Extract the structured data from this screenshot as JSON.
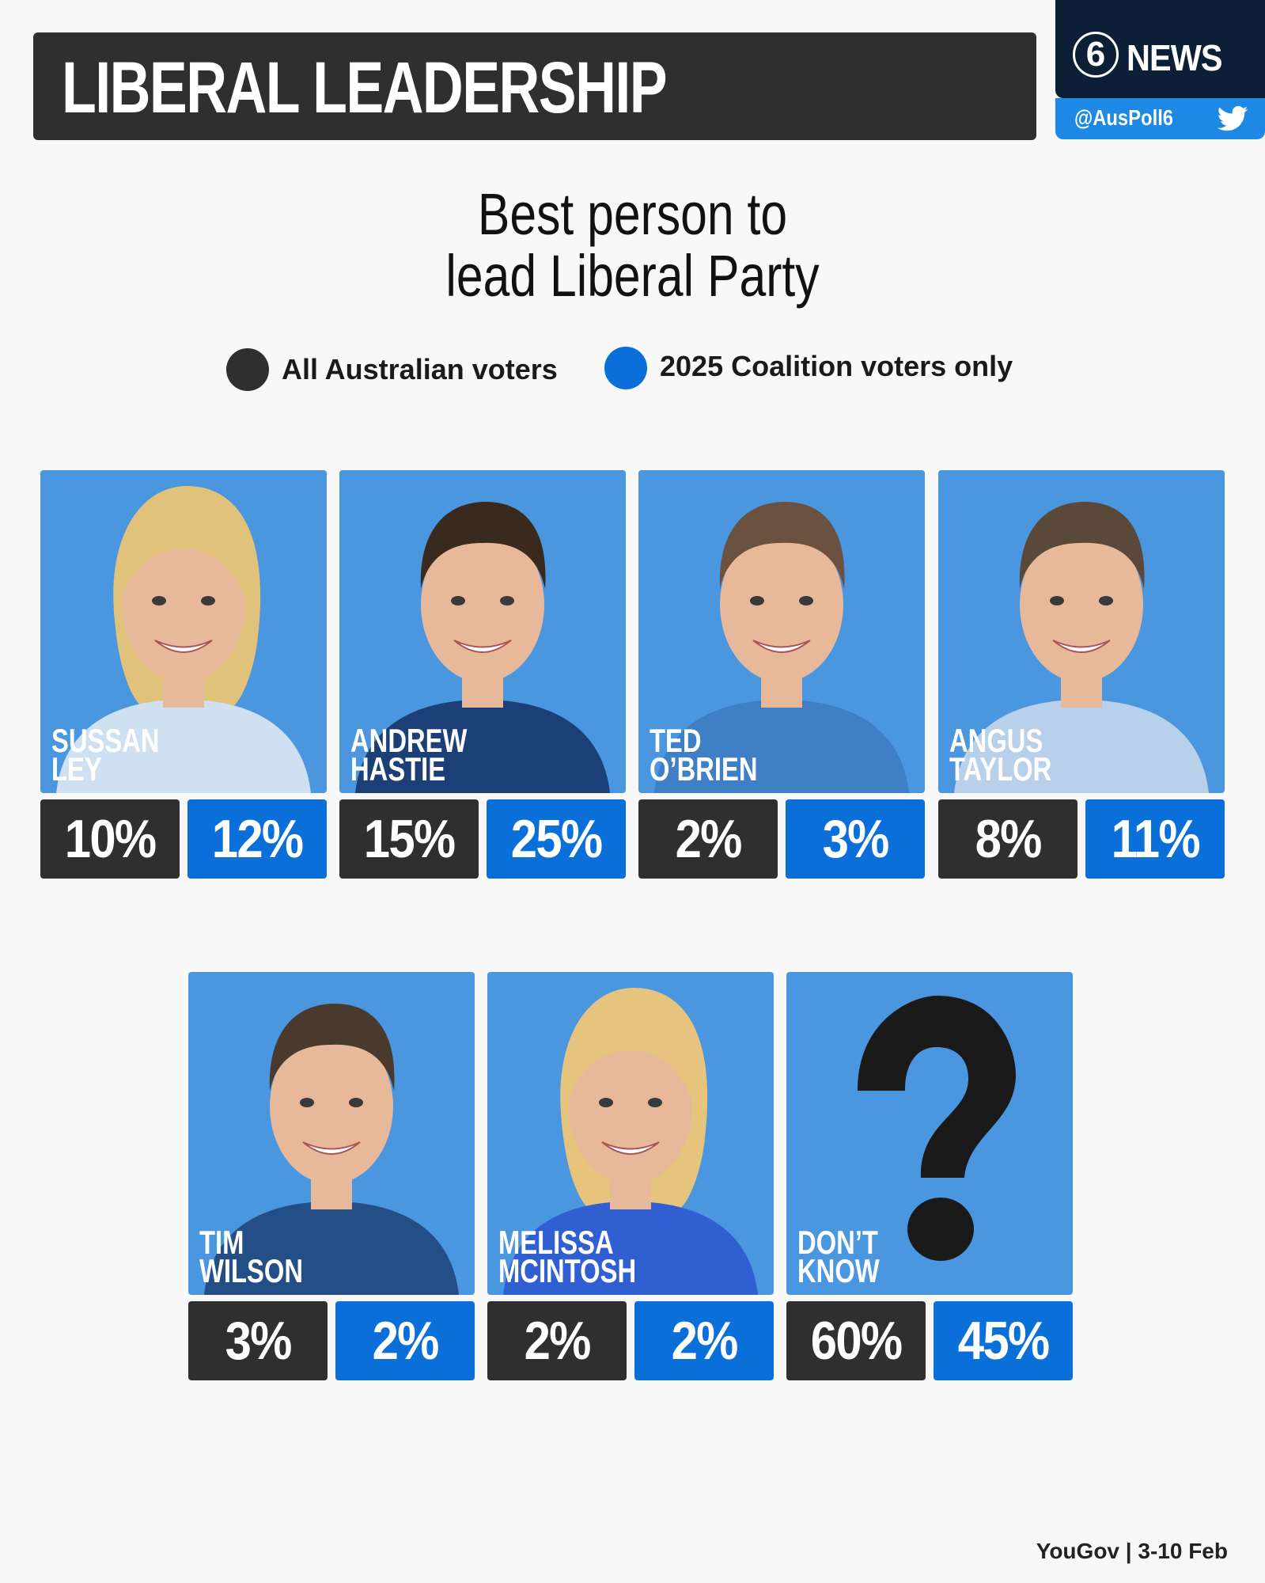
{
  "header": {
    "title": "LIBERAL LEADERSHIP"
  },
  "brand": {
    "number": "6",
    "name": "NEWS",
    "handle": "@AusPoll6",
    "icon": "twitter-bird-icon"
  },
  "colors": {
    "all_voters": "#2f2f2f",
    "coalition_voters": "#0a6fd8",
    "photo_bg": "#4a97e0",
    "background": "#f8f8f8"
  },
  "chart_data": {
    "type": "table",
    "title_line1": "Best person to",
    "title_line2": "lead Liberal Party",
    "series": [
      {
        "name": "All Australian voters",
        "color": "#2f2f2f",
        "values": [
          10,
          15,
          2,
          8,
          3,
          2,
          60
        ]
      },
      {
        "name": "2025 Coalition voters only",
        "color": "#0a6fd8",
        "values": [
          12,
          25,
          3,
          11,
          2,
          2,
          45
        ]
      }
    ],
    "categories": [
      "SUSSAN LEY",
      "ANDREW HASTIE",
      "TED O'BRIEN",
      "ANGUS TAYLOR",
      "TIM WILSON",
      "MELISSA MCINTOSH",
      "DON'T KNOW"
    ],
    "unit": "%"
  },
  "candidates": [
    {
      "first": "SUSSAN",
      "last": "LEY",
      "all": "10%",
      "coalition": "12%",
      "portrait": "woman-blonde"
    },
    {
      "first": "ANDREW",
      "last": "HASTIE",
      "all": "15%",
      "coalition": "25%",
      "portrait": "man-dark-suit"
    },
    {
      "first": "TED",
      "last": "O’BRIEN",
      "all": "2%",
      "coalition": "3%",
      "portrait": "man-bald-blue-jacket"
    },
    {
      "first": "ANGUS",
      "last": "TAYLOR",
      "all": "8%",
      "coalition": "11%",
      "portrait": "man-grey-shirt"
    },
    {
      "first": "TIM",
      "last": "WILSON",
      "all": "3%",
      "coalition": "2%",
      "portrait": "man-navy-suit"
    },
    {
      "first": "MELISSA",
      "last": "MCINTOSH",
      "all": "2%",
      "coalition": "2%",
      "portrait": "woman-blonde-blue-dress"
    },
    {
      "first": "DON’T",
      "last": "KNOW",
      "all": "60%",
      "coalition": "45%",
      "portrait": "question-mark"
    }
  ],
  "source": "YouGov | 3-10 Feb"
}
